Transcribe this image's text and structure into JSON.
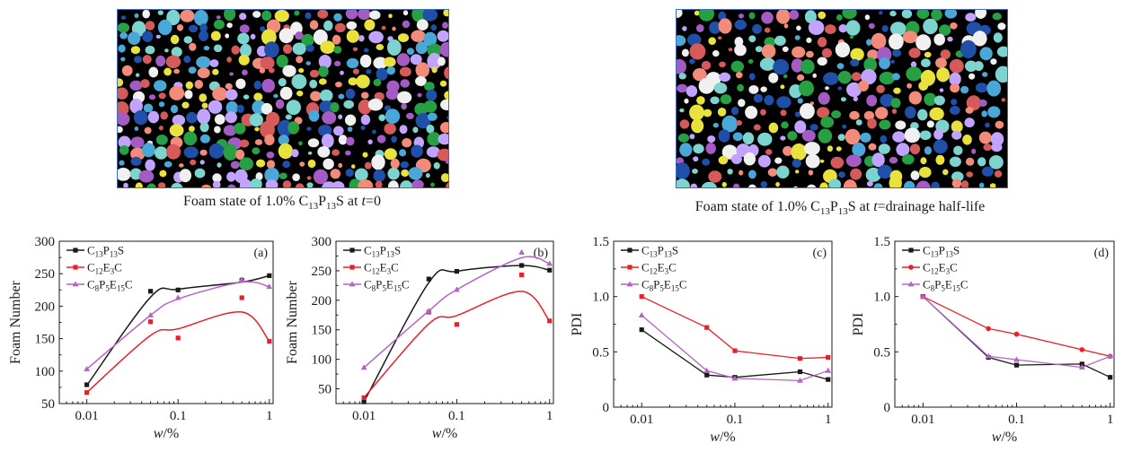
{
  "images": [
    {
      "caption_prefix": "Foam state of 1.0% C",
      "caption_sub1": "13",
      "caption_mid1": "P",
      "caption_sub2": "13",
      "caption_mid2": "S at ",
      "caption_var": "t",
      "caption_suffix": "=0"
    },
    {
      "caption_prefix": "Foam state of 1.0% C",
      "caption_sub1": "13",
      "caption_mid1": "P",
      "caption_sub2": "13",
      "caption_mid2": "S at ",
      "caption_var": "t",
      "caption_suffix": "=drainage half-life"
    }
  ],
  "colors": {
    "black": "#1a1a1a",
    "red": "#e8202a",
    "purple": "#b364c4",
    "bubbles": [
      "#1f4fa8",
      "#26a043",
      "#7dd4cf",
      "#a45bc3",
      "#e9e23c",
      "#f28b7a",
      "#c2a3ff",
      "#f0f0f0",
      "#d65a5a",
      "#4aa8d8"
    ]
  },
  "chart_data": [
    {
      "type": "scatter",
      "panel": "(a)",
      "xscale": "log",
      "xlim": [
        0.005,
        1.1
      ],
      "ylim": [
        50,
        300
      ],
      "xticks": [
        "0.01",
        "0.1",
        "1"
      ],
      "yticks": [
        "50",
        "100",
        "150",
        "200",
        "250",
        "300"
      ],
      "xlabel_var": "w",
      "xlabel_unit": "/%",
      "ylabel": "Foam Number",
      "series": [
        {
          "name": "C13P13S",
          "label_parts": [
            "C",
            "13",
            "P",
            "13",
            "S"
          ],
          "color": "black",
          "marker": "square",
          "x": [
            0.01,
            0.05,
            0.1,
            0.5,
            1
          ],
          "y": [
            79,
            223,
            225,
            240,
            247
          ],
          "fit_y": [
            78,
            214,
            226,
            237,
            247
          ]
        },
        {
          "name": "C12E3C",
          "label_parts": [
            "C",
            "12",
            "E",
            "3",
            "C"
          ],
          "color": "red",
          "marker": "square",
          "x": [
            0.01,
            0.05,
            0.1,
            0.5,
            1
          ],
          "y": [
            67,
            176,
            151,
            213,
            146
          ],
          "fit_y": [
            67,
            155,
            165,
            191,
            146
          ]
        },
        {
          "name": "C8P5E15C",
          "label_parts": [
            "C",
            "8",
            "P",
            "5",
            "E",
            "15",
            "C"
          ],
          "color": "purple",
          "marker": "triangle",
          "x": [
            0.01,
            0.05,
            0.1,
            0.5,
            1
          ],
          "y": [
            103,
            186,
            213,
            241,
            230
          ],
          "fit_y": [
            103,
            186,
            211,
            237,
            230
          ]
        }
      ]
    },
    {
      "type": "scatter",
      "panel": "(b)",
      "xscale": "log",
      "xlim": [
        0.005,
        1.1
      ],
      "ylim": [
        25,
        300
      ],
      "xticks": [
        "0.01",
        "0.1",
        "1"
      ],
      "yticks": [
        "50",
        "100",
        "150",
        "200",
        "250",
        "300"
      ],
      "xlabel_var": "w",
      "xlabel_unit": "/%",
      "ylabel": "Foam Number",
      "series": [
        {
          "name": "C13P13S",
          "label_parts": [
            "C",
            "13",
            "P",
            "13",
            "S"
          ],
          "color": "black",
          "marker": "square",
          "x": [
            0.01,
            0.05,
            0.1,
            0.5,
            1
          ],
          "y": [
            28,
            236,
            249,
            259,
            251
          ],
          "fit_y": [
            28,
            230,
            249,
            259,
            251
          ]
        },
        {
          "name": "C12E3C",
          "label_parts": [
            "C",
            "12",
            "E",
            "3",
            "C"
          ],
          "color": "red",
          "marker": "square",
          "x": [
            0.01,
            0.05,
            0.1,
            0.5,
            1
          ],
          "y": [
            35,
            180,
            159,
            243,
            165
          ],
          "fit_y": [
            35,
            160,
            174,
            215,
            165
          ]
        },
        {
          "name": "C8P5E15C",
          "label_parts": [
            "C",
            "8",
            "P",
            "5",
            "E",
            "15",
            "C"
          ],
          "color": "purple",
          "marker": "triangle",
          "x": [
            0.01,
            0.05,
            0.1,
            0.5,
            1
          ],
          "y": [
            86,
            182,
            218,
            281,
            262
          ],
          "fit_y": [
            86,
            182,
            218,
            272,
            262
          ]
        }
      ]
    },
    {
      "type": "line",
      "panel": "(c)",
      "xscale": "log",
      "xlim": [
        0.005,
        1.1
      ],
      "ylim": [
        0,
        1.5
      ],
      "xticks": [
        "0.01",
        "0.1",
        "1"
      ],
      "yticks": [
        "0",
        "0.5",
        "1.0",
        "1.5"
      ],
      "xlabel_var": "w",
      "xlabel_unit": "/%",
      "ylabel": "PDI",
      "series": [
        {
          "name": "C13P13S",
          "label_parts": [
            "C",
            "13",
            "P",
            "13",
            "S"
          ],
          "color": "black",
          "marker": "square",
          "x": [
            0.01,
            0.05,
            0.1,
            0.5,
            1
          ],
          "y": [
            0.7,
            0.29,
            0.27,
            0.32,
            0.25
          ]
        },
        {
          "name": "C12E3C",
          "label_parts": [
            "C",
            "12",
            "E",
            "3",
            "C"
          ],
          "color": "red",
          "marker": "square",
          "x": [
            0.01,
            0.05,
            0.1,
            0.5,
            1
          ],
          "y": [
            1.0,
            0.72,
            0.51,
            0.44,
            0.45
          ]
        },
        {
          "name": "C8P5E15C",
          "label_parts": [
            "C",
            "8",
            "P",
            "5",
            "E",
            "15",
            "C"
          ],
          "color": "purple",
          "marker": "triangle",
          "x": [
            0.01,
            0.05,
            0.1,
            0.5,
            1
          ],
          "y": [
            0.83,
            0.33,
            0.26,
            0.24,
            0.33
          ]
        }
      ]
    },
    {
      "type": "line",
      "panel": "(d)",
      "xscale": "log",
      "xlim": [
        0.005,
        1.1
      ],
      "ylim": [
        0,
        1.5
      ],
      "xticks": [
        "0.01",
        "0.1",
        "1"
      ],
      "yticks": [
        "0",
        "0.5",
        "1.0",
        "1.5"
      ],
      "xlabel_var": "w",
      "xlabel_unit": "/%",
      "ylabel": "PDI",
      "series": [
        {
          "name": "C13P13S",
          "label_parts": [
            "C",
            "13",
            "P",
            "13",
            "S"
          ],
          "color": "black",
          "marker": "square",
          "x": [
            0.01,
            0.05,
            0.1,
            0.5,
            1
          ],
          "y": [
            1.0,
            0.45,
            0.38,
            0.39,
            0.27
          ]
        },
        {
          "name": "C12E3C",
          "label_parts": [
            "C",
            "12",
            "E",
            "3",
            "C"
          ],
          "color": "red",
          "marker": "circle",
          "x": [
            0.01,
            0.05,
            0.1,
            0.5,
            1
          ],
          "y": [
            1.0,
            0.71,
            0.66,
            0.52,
            0.46
          ]
        },
        {
          "name": "C8P5E15C",
          "label_parts": [
            "C",
            "8",
            "P",
            "5",
            "E",
            "15",
            "C"
          ],
          "color": "purple",
          "marker": "triangle",
          "x": [
            0.01,
            0.05,
            0.1,
            0.5,
            1
          ],
          "y": [
            1.0,
            0.46,
            0.43,
            0.36,
            0.46
          ]
        }
      ]
    }
  ]
}
